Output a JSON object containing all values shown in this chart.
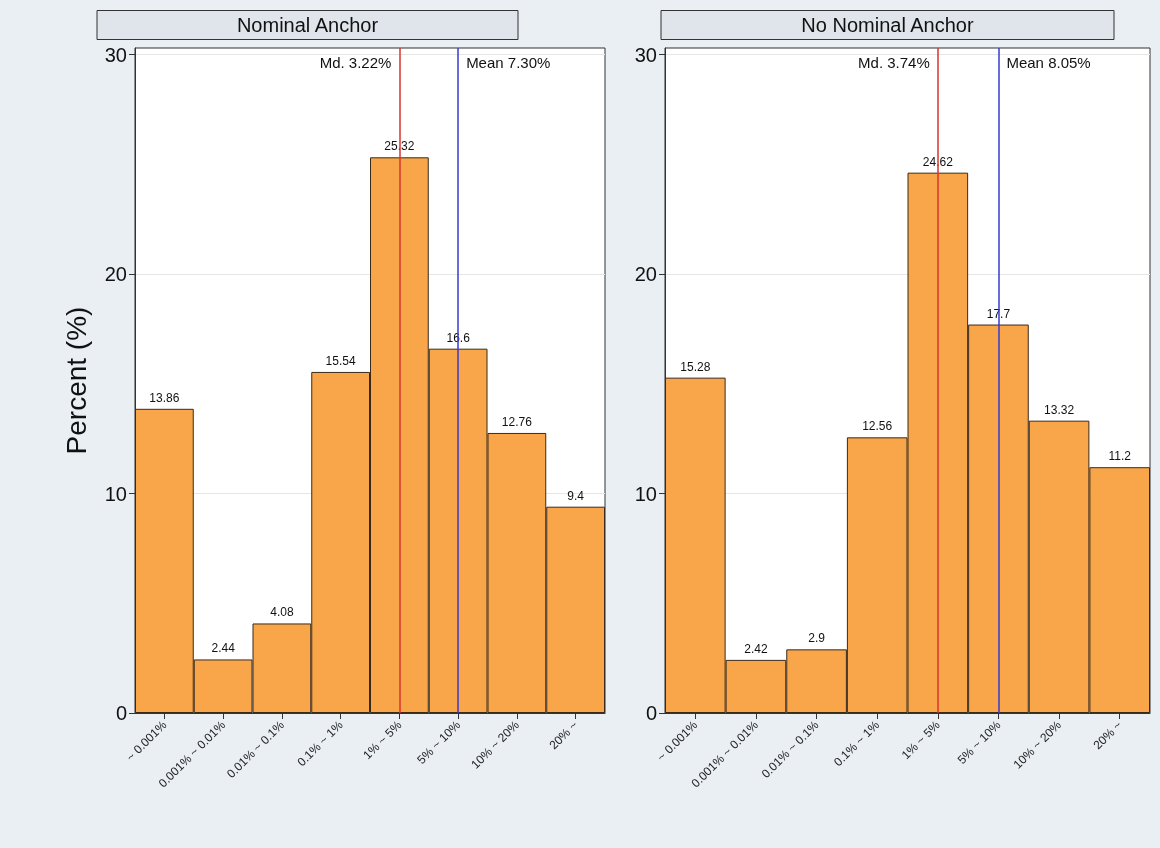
{
  "chart_data": [
    {
      "type": "bar",
      "title": "Nominal Anchor",
      "ylabel": "Percent (%)",
      "categories": [
        "~ 0.001%",
        "0.001% ~ 0.01%",
        "0.01% ~ 0.1%",
        "0.1% ~ 1%",
        "1% ~ 5%",
        "5% ~ 10%",
        "10% ~ 20%",
        "20% ~"
      ],
      "values": [
        13.86,
        2.44,
        4.08,
        15.54,
        25.32,
        16.6,
        12.76,
        9.4
      ],
      "color": "#f8a649",
      "ylim": [
        0,
        30.3
      ],
      "yticks": [
        0,
        10,
        20,
        30
      ],
      "grid": "y",
      "data_labels": true,
      "ref_lines": [
        {
          "axis": "x",
          "value": "1% ~ 5%",
          "label": "Md. 3.22%",
          "color": "#d8352f"
        },
        {
          "axis": "x",
          "value": "5% ~ 10%",
          "label": "Mean 7.30%",
          "color": "#3a3ad0"
        }
      ]
    },
    {
      "type": "bar",
      "title": "No Nominal Anchor",
      "categories": [
        "~ 0.001%",
        "0.001% ~ 0.01%",
        "0.01% ~ 0.1%",
        "0.1% ~ 1%",
        "1% ~ 5%",
        "5% ~ 10%",
        "10% ~ 20%",
        "20% ~"
      ],
      "values": [
        15.28,
        2.42,
        2.9,
        12.56,
        24.62,
        17.7,
        13.32,
        11.2
      ],
      "color": "#f8a649",
      "ylim": [
        0,
        30.3
      ],
      "yticks": [
        0,
        10,
        20,
        30
      ],
      "grid": "y",
      "data_labels": true,
      "ref_lines": [
        {
          "axis": "x",
          "value": "1% ~ 5%",
          "label": "Md. 3.74%",
          "color": "#d8352f"
        },
        {
          "axis": "x",
          "value": "5% ~ 10%",
          "label": "Mean 8.05%",
          "color": "#3a3ad0"
        }
      ]
    }
  ]
}
